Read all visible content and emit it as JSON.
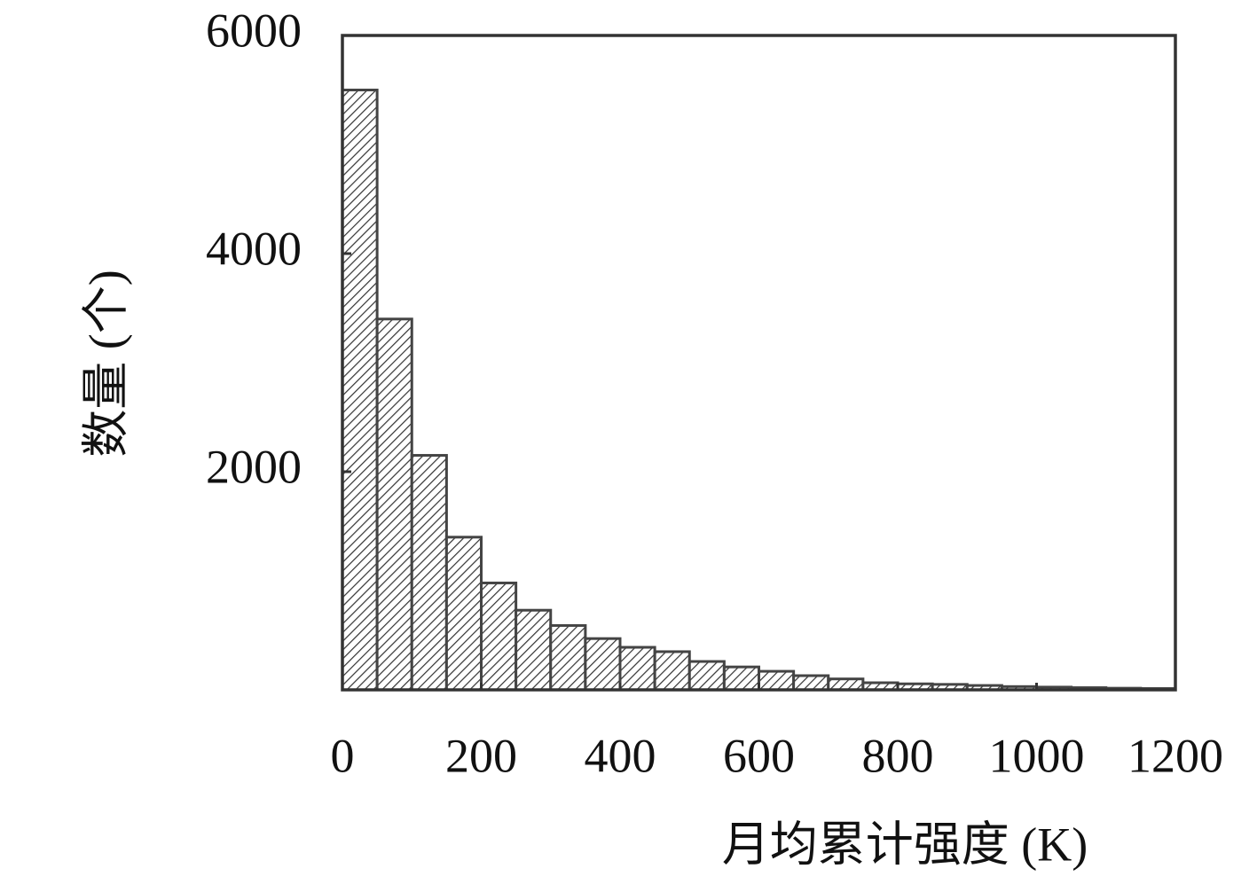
{
  "chart_data": {
    "type": "histogram",
    "x_label": "月均累计强度 (K)",
    "y_label": "数量 (个)",
    "bins": [
      0,
      50,
      100,
      150,
      200,
      250,
      300,
      350,
      400,
      450,
      500,
      550,
      600,
      650,
      700,
      750,
      800,
      850,
      900,
      950,
      1000,
      1050,
      1100,
      1150,
      1200
    ],
    "values": [
      5500,
      3400,
      2150,
      1400,
      980,
      730,
      590,
      470,
      390,
      350,
      260,
      210,
      170,
      130,
      100,
      65,
      55,
      50,
      40,
      30,
      25,
      20,
      15,
      12
    ],
    "color": "#444444",
    "xlim": [
      0,
      1200
    ],
    "xticks": [
      0,
      200,
      400,
      600,
      800,
      1000,
      1200
    ],
    "ylim": [
      0,
      6000
    ],
    "yticks": [
      2000,
      4000,
      6000
    ]
  }
}
